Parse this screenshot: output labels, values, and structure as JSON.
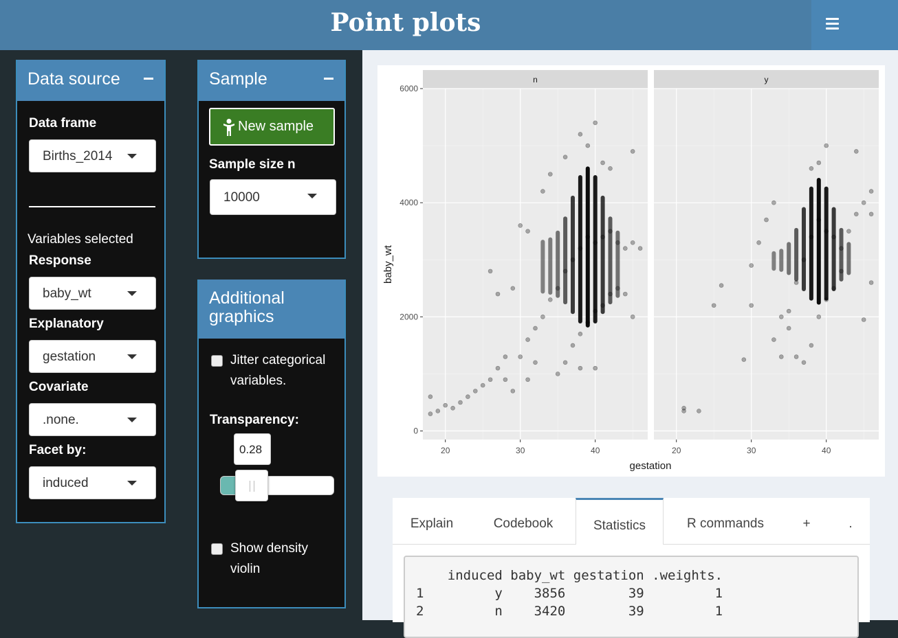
{
  "header": {
    "title": "Point plots"
  },
  "data_source": {
    "title": "Data source",
    "frame_label": "Data frame",
    "frame_value": "Births_2014",
    "vars_heading": "Variables selected",
    "response_label": "Response",
    "response_value": "baby_wt",
    "explanatory_label": "Explanatory",
    "explanatory_value": "gestation",
    "covariate_label": "Covariate",
    "covariate_value": ".none.",
    "facet_label": "Facet by:",
    "facet_value": "induced"
  },
  "sample": {
    "title": "Sample",
    "new_sample_label": "New sample",
    "size_label": "Sample size n",
    "size_value": "10000"
  },
  "additional": {
    "title_line1": "Additional",
    "title_line2": "graphics",
    "jitter_line1": "Jitter categorical",
    "jitter_line2": "variables.",
    "transparency_label": "Transparency:",
    "transparency_value": "0.28",
    "violin_line1": "Show density",
    "violin_line2": "violin"
  },
  "chart_data": {
    "type": "scatter",
    "xlabel": "gestation",
    "ylabel": "baby_wt",
    "facets": [
      "n",
      "y"
    ],
    "x_ticks": [
      "20",
      "30",
      "40"
    ],
    "y_ticks": [
      "0",
      "2000",
      "4000",
      "6000"
    ],
    "xlim": [
      17,
      47
    ],
    "ylim": [
      -150,
      6000
    ],
    "alpha": 0.28,
    "panels": [
      {
        "facet": "n",
        "points": [
          [
            18,
            300
          ],
          [
            18,
            600
          ],
          [
            19,
            350
          ],
          [
            20,
            450
          ],
          [
            21,
            400
          ],
          [
            22,
            500
          ],
          [
            23,
            600
          ],
          [
            24,
            700
          ],
          [
            25,
            800
          ],
          [
            26,
            900
          ],
          [
            27,
            1100
          ],
          [
            28,
            1300
          ],
          [
            26,
            2800
          ],
          [
            27,
            2400
          ],
          [
            29,
            2500
          ],
          [
            30,
            1300
          ],
          [
            31,
            1600
          ],
          [
            32,
            1800
          ],
          [
            33,
            2000
          ],
          [
            34,
            2300
          ],
          [
            35,
            2500
          ],
          [
            36,
            2800
          ],
          [
            37,
            3000
          ],
          [
            38,
            3200
          ],
          [
            39,
            3400
          ],
          [
            40,
            3300
          ],
          [
            41,
            3400
          ],
          [
            42,
            3500
          ],
          [
            43,
            3300
          ],
          [
            44,
            3200
          ],
          [
            45,
            3300
          ],
          [
            35,
            1000
          ],
          [
            36,
            1200
          ],
          [
            37,
            1500
          ],
          [
            38,
            1700
          ],
          [
            39,
            1900
          ],
          [
            40,
            2100
          ],
          [
            41,
            2200
          ],
          [
            42,
            2400
          ],
          [
            43,
            2500
          ],
          [
            34,
            4500
          ],
          [
            36,
            4800
          ],
          [
            38,
            5200
          ],
          [
            39,
            5000
          ],
          [
            40,
            5400
          ],
          [
            41,
            4700
          ],
          [
            42,
            4600
          ],
          [
            45,
            4900
          ],
          [
            45,
            2000
          ],
          [
            38,
            1100
          ],
          [
            40,
            1100
          ],
          [
            30,
            3600
          ],
          [
            31,
            3500
          ],
          [
            33,
            4200
          ],
          [
            44,
            2400
          ],
          [
            46,
            3200
          ],
          [
            28,
            900
          ],
          [
            29,
            700
          ],
          [
            31,
            900
          ],
          [
            32,
            1200
          ]
        ]
      },
      {
        "facet": "y",
        "points": [
          [
            21,
            400
          ],
          [
            21,
            350
          ],
          [
            23,
            350
          ],
          [
            25,
            2200
          ],
          [
            26,
            2550
          ],
          [
            29,
            1250
          ],
          [
            30,
            2200
          ],
          [
            30,
            2900
          ],
          [
            31,
            3300
          ],
          [
            32,
            3700
          ],
          [
            33,
            4000
          ],
          [
            34,
            1300
          ],
          [
            35,
            2100
          ],
          [
            36,
            2600
          ],
          [
            37,
            3000
          ],
          [
            38,
            3400
          ],
          [
            39,
            3700
          ],
          [
            40,
            3500
          ],
          [
            41,
            3400
          ],
          [
            42,
            3200
          ],
          [
            43,
            3500
          ],
          [
            44,
            3800
          ],
          [
            45,
            4000
          ],
          [
            46,
            2600
          ],
          [
            45,
            1950
          ],
          [
            44,
            4900
          ],
          [
            40,
            5000
          ],
          [
            39,
            4700
          ],
          [
            38,
            4600
          ],
          [
            36,
            1300
          ],
          [
            37,
            1200
          ],
          [
            38,
            1500
          ],
          [
            39,
            2000
          ],
          [
            40,
            2300
          ],
          [
            41,
            2500
          ],
          [
            42,
            2800
          ],
          [
            35,
            1800
          ],
          [
            34,
            2000
          ],
          [
            33,
            1600
          ],
          [
            46,
            4200
          ],
          [
            46,
            3800
          ]
        ]
      }
    ]
  },
  "tabs": [
    "Explain",
    "Codebook",
    "Statistics",
    "R commands",
    "+",
    "."
  ],
  "stats": {
    "header": "    induced baby_wt gestation .weights.",
    "row1": "1         y    3856        39         1",
    "row2": "2         n    3420        39         1"
  }
}
